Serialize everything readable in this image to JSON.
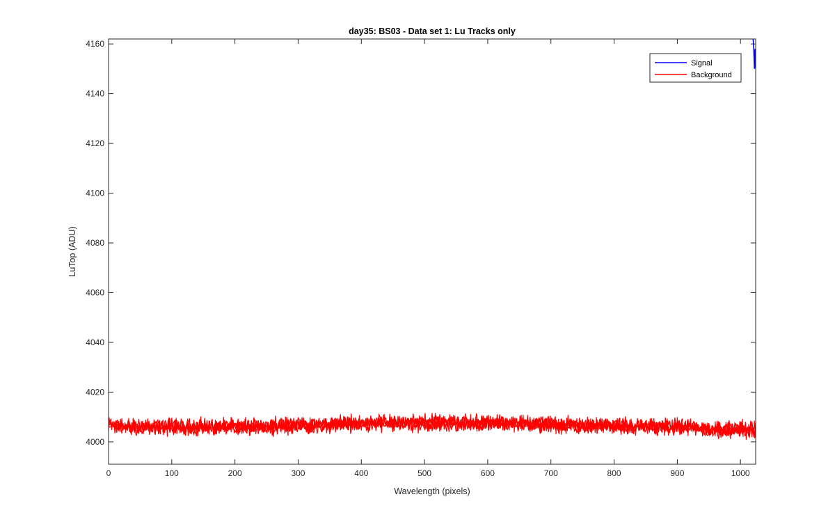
{
  "chart_data": {
    "type": "line",
    "title": "day35: BS03 - Data set 1: Lu Tracks only",
    "xlabel": "Wavelength (pixels)",
    "ylabel": "LuTop (ADU)",
    "xlim": [
      0,
      1024
    ],
    "ylim": [
      3991,
      4162
    ],
    "xticks": [
      0,
      100,
      200,
      300,
      400,
      500,
      600,
      700,
      800,
      900,
      1000
    ],
    "yticks": [
      4000,
      4020,
      4040,
      4060,
      4080,
      4100,
      4120,
      4140,
      4160
    ],
    "grid": false,
    "legend_position": "top-right",
    "series": [
      {
        "name": "Signal",
        "color": "#0000ff",
        "x": [
          1020,
          1021,
          1022,
          1023,
          1024
        ],
        "y": [
          4162,
          4158,
          4150,
          4158,
          4150
        ]
      },
      {
        "name": "Background",
        "color": "#ff0000",
        "x": [
          0,
          50,
          100,
          150,
          200,
          250,
          300,
          350,
          400,
          450,
          500,
          550,
          600,
          650,
          700,
          750,
          800,
          850,
          900,
          950,
          1000,
          1024
        ],
        "y": [
          4006.5,
          4006,
          4006,
          4006,
          4006,
          4006.5,
          4006.5,
          4007,
          4007.5,
          4007.5,
          4007.5,
          4007.5,
          4007.5,
          4007.5,
          4007,
          4006.5,
          4006.5,
          4006,
          4006,
          4005,
          4005,
          4005
        ],
        "noise_amplitude": 3.5
      }
    ]
  }
}
